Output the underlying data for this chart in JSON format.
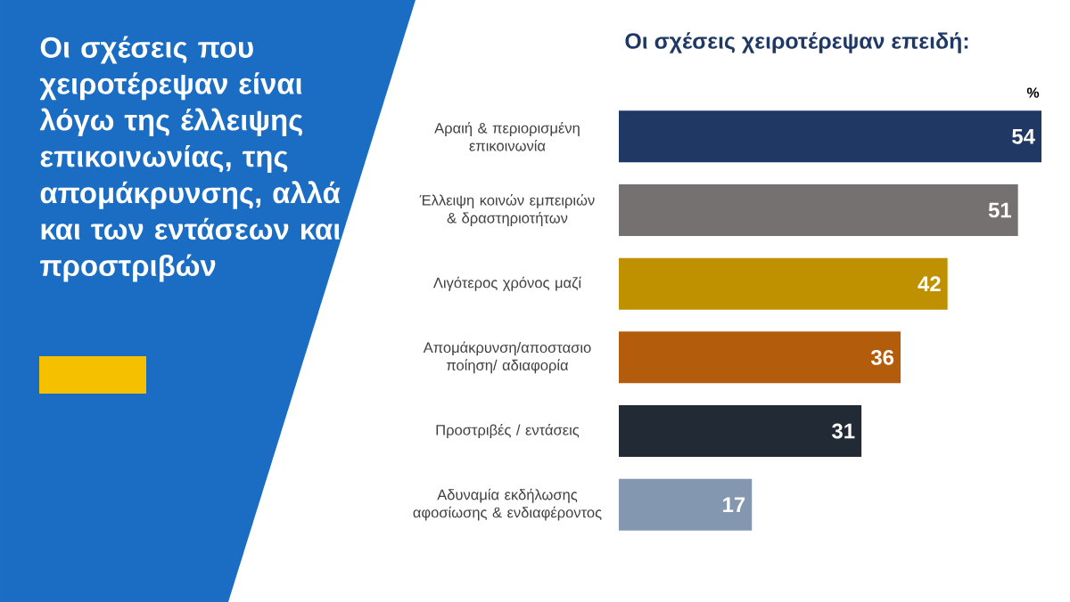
{
  "chart_data": {
    "type": "bar",
    "orientation": "horizontal",
    "title": "Οι σχέσεις που χειροτέρεψαν είναι λόγω της έλλειψης επικοινωνίας, της απομάκρυνσης, αλλά και των εντάσεων και προστριβών",
    "subtitle": "Οι σχέσεις χειροτέρεψαν επειδή:",
    "xlabel": "%",
    "categories": [
      "Αραιή & περιορισμένη επικοινωνία",
      "Έλλειψη κοινών εμπειριών & δραστηριοτήτων",
      "Λιγότερος χρόνος μαζί",
      "Απομάκρυνση/αποστασιο ποίηση/ αδιαφορία",
      "Προστριβές / εντάσεις",
      "Αδυναμία εκδήλωσης αφοσίωσης & ενδιαφέροντος"
    ],
    "values": [
      54,
      51,
      42,
      36,
      31,
      17
    ],
    "colors": [
      "#203864",
      "#767171",
      "#bf9000",
      "#b35c0c",
      "#222a35",
      "#8497b0"
    ],
    "data_labels": true
  }
}
